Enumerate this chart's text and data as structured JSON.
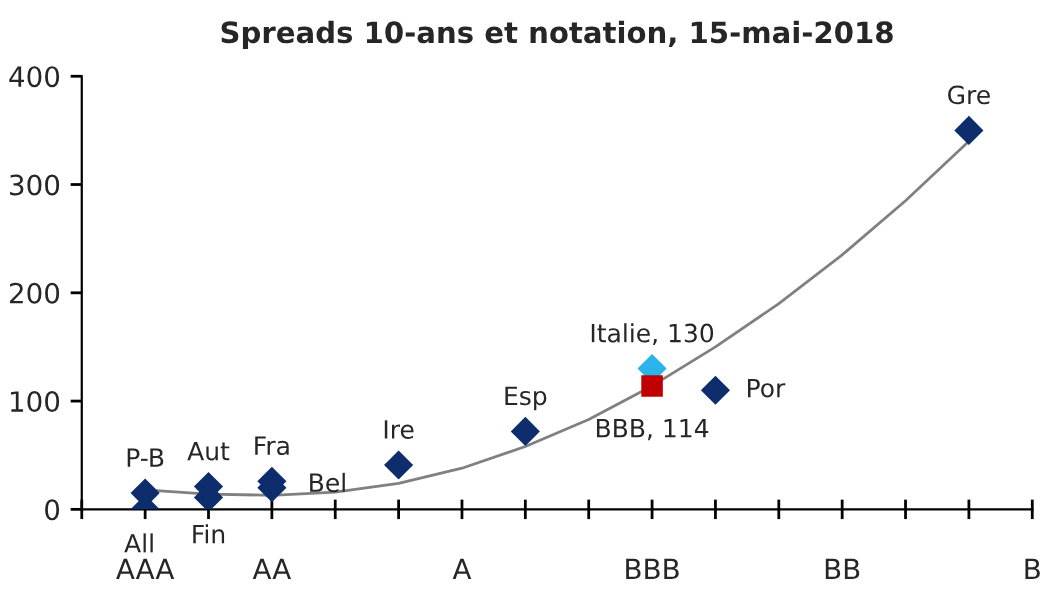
{
  "chart_data": {
    "type": "scatter",
    "title": "Spreads 10-ans et notation, 15-mai-2018",
    "categories": [
      null,
      "AAA",
      null,
      "AA",
      null,
      null,
      "A",
      null,
      null,
      "BBB",
      null,
      null,
      "BB",
      null,
      null,
      "B"
    ],
    "series": [
      {
        "color": "#0d2d6c",
        "marker": "diamond",
        "values": [
          null,
          15,
          21,
          26,
          null,
          41,
          null,
          72,
          null,
          null,
          110,
          null,
          null,
          null,
          350,
          null
        ],
        "value_labels": [
          null,
          "P-B",
          "Aut",
          "Fra",
          null,
          "Ire",
          null,
          "Esp",
          null,
          null,
          "Por",
          null,
          null,
          null,
          "Gre",
          null
        ]
      },
      {
        "color": "#0d2d6c",
        "marker": "diamond",
        "values": [
          null,
          0,
          11,
          20,
          null,
          null,
          null,
          null,
          null,
          null,
          null,
          null,
          null,
          null,
          null,
          null
        ],
        "value_labels": [
          null,
          "All",
          "Fin",
          "Bel",
          null,
          null,
          null,
          null,
          null,
          null,
          null,
          null,
          null,
          null,
          null,
          null
        ]
      },
      {
        "color": "#2ab4ea",
        "marker": "diamond",
        "values": [
          null,
          null,
          null,
          null,
          null,
          null,
          null,
          null,
          null,
          130,
          null,
          null,
          null,
          null,
          null,
          null
        ],
        "value_labels": [
          null,
          null,
          null,
          null,
          null,
          null,
          null,
          null,
          null,
          "Italie, 130",
          null,
          null,
          null,
          null,
          null,
          null
        ]
      },
      {
        "color": "#c00000",
        "marker": "square",
        "values": [
          null,
          null,
          null,
          null,
          null,
          null,
          null,
          null,
          null,
          114,
          null,
          null,
          null,
          null,
          null,
          null
        ],
        "value_labels": [
          null,
          null,
          null,
          null,
          null,
          null,
          null,
          null,
          null,
          "BBB, 114",
          null,
          null,
          null,
          null,
          null,
          null
        ]
      },
      {
        "type": "line",
        "color": "#808080",
        "marker": "none",
        "values": [
          null,
          18,
          14,
          13,
          16,
          24,
          38,
          58,
          83,
          114,
          150,
          190,
          235,
          285,
          340,
          null
        ]
      }
    ],
    "ylim": [
      0,
      400
    ],
    "yticks": [
      0,
      100,
      200,
      300,
      400
    ],
    "grid": false,
    "legend": false
  }
}
